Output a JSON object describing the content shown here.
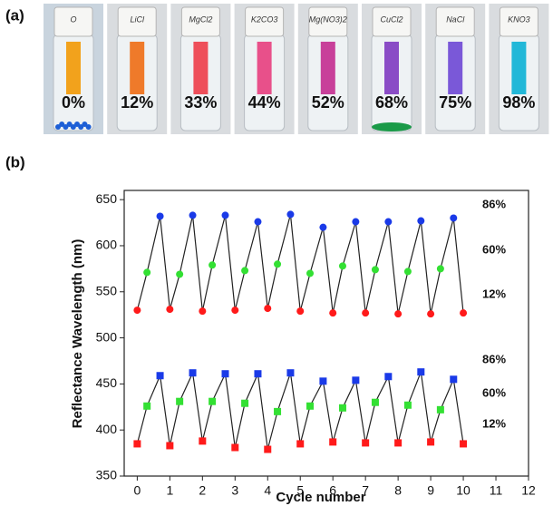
{
  "panel_a": {
    "label": "(a)",
    "vials": [
      {
        "cap": "O",
        "percent": "0%",
        "strip": "#f2a21c"
      },
      {
        "cap": "LiCl",
        "percent": "12%",
        "strip": "#ef7a2a"
      },
      {
        "cap": "MgCl2",
        "percent": "33%",
        "strip": "#ee4f5a"
      },
      {
        "cap": "K2CO3",
        "percent": "44%",
        "strip": "#e8508a"
      },
      {
        "cap": "Mg(NO3)2",
        "percent": "52%",
        "strip": "#c8409a"
      },
      {
        "cap": "CuCl2",
        "percent": "68%",
        "strip": "#8a4cc6"
      },
      {
        "cap": "NaCl",
        "percent": "75%",
        "strip": "#7a58d8"
      },
      {
        "cap": "KNO3",
        "percent": "98%",
        "strip": "#22b8d8"
      }
    ]
  },
  "chart_data": {
    "type": "line",
    "label": "(b)",
    "xlabel": "Cycle number",
    "ylabel": "Reflectance Wavelength (nm)",
    "xlim": [
      -0.4,
      12
    ],
    "xticks": [
      0,
      1,
      2,
      3,
      4,
      5,
      6,
      7,
      8,
      9,
      10,
      11,
      12
    ],
    "ylim": [
      350,
      660
    ],
    "yticks": [
      350,
      400,
      450,
      500,
      550,
      600,
      650
    ],
    "line_color": "#222",
    "point_colors": [
      "#ff1a1a",
      "#33e033",
      "#1a3ae8"
    ],
    "series": [
      {
        "marker": "circle",
        "level_labels": [
          "86%",
          "60%",
          "12%"
        ],
        "x": [
          0,
          0.3,
          0.7,
          1,
          1.3,
          1.7,
          2,
          2.3,
          2.7,
          3,
          3.3,
          3.7,
          4,
          4.3,
          4.7,
          5,
          5.3,
          5.7,
          6,
          6.3,
          6.7,
          7,
          7.3,
          7.7,
          8,
          8.3,
          8.7,
          9,
          9.3,
          9.7,
          10
        ],
        "values": [
          530,
          571,
          632,
          531,
          569,
          633,
          529,
          579,
          633,
          530,
          573,
          626,
          532,
          580,
          634,
          529,
          570,
          620,
          527,
          578,
          626,
          527,
          574,
          626,
          526,
          572,
          627,
          526,
          575,
          630,
          527
        ]
      },
      {
        "marker": "square",
        "level_labels": [
          "86%",
          "60%",
          "12%"
        ],
        "x": [
          0,
          0.3,
          0.7,
          1,
          1.3,
          1.7,
          2,
          2.3,
          2.7,
          3,
          3.3,
          3.7,
          4,
          4.3,
          4.7,
          5,
          5.3,
          5.7,
          6,
          6.3,
          6.7,
          7,
          7.3,
          7.7,
          8,
          8.3,
          8.7,
          9,
          9.3,
          9.7,
          10
        ],
        "values": [
          385,
          426,
          459,
          383,
          431,
          462,
          388,
          431,
          461,
          381,
          429,
          461,
          379,
          420,
          462,
          385,
          426,
          453,
          387,
          424,
          454,
          386,
          430,
          458,
          386,
          427,
          463,
          387,
          422,
          455,
          385
        ]
      }
    ]
  }
}
